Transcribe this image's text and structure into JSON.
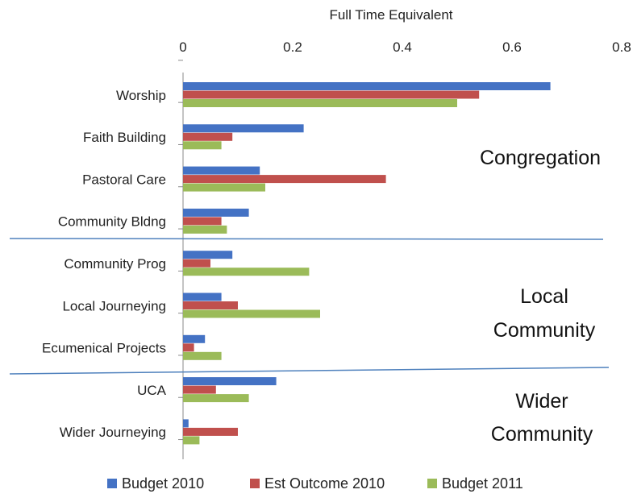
{
  "chart_data": {
    "type": "bar",
    "orientation": "horizontal",
    "xlabel": "Full Time Equivalent",
    "xlim": [
      0,
      0.8
    ],
    "xticks": [
      0,
      0.2,
      0.4,
      0.6,
      0.8
    ],
    "xtick_labels": [
      "0",
      "0.2",
      "0.4",
      "0.6",
      "0.8"
    ],
    "x_axis_position": "top",
    "grid": false,
    "legend_position": "bottom",
    "categories": [
      "Worship",
      "Faith Building",
      "Pastoral Care",
      "Community Bldng",
      "Community Prog",
      "Local Journeying",
      "Ecumenical Projects",
      "UCA",
      "Wider Journeying"
    ],
    "series": [
      {
        "name": "Budget 2010",
        "color": "#4472C4",
        "values": [
          0.67,
          0.22,
          0.14,
          0.12,
          0.09,
          0.07,
          0.04,
          0.17,
          0.01
        ]
      },
      {
        "name": "Est Outcome 2010",
        "color": "#C0504D",
        "values": [
          0.54,
          0.09,
          0.37,
          0.07,
          0.05,
          0.1,
          0.02,
          0.06,
          0.1
        ]
      },
      {
        "name": "Budget 2011",
        "color": "#9BBB59",
        "values": [
          0.5,
          0.07,
          0.15,
          0.08,
          0.23,
          0.25,
          0.07,
          0.12,
          0.03
        ]
      }
    ],
    "groups": [
      {
        "lines": [
          "Congregation"
        ],
        "categories": [
          "Worship",
          "Faith Building",
          "Pastoral Care",
          "Community Bldng"
        ]
      },
      {
        "lines": [
          "Local",
          "Community"
        ],
        "categories": [
          "Community Prog",
          "Local Journeying",
          "Ecumenical Projects"
        ]
      },
      {
        "lines": [
          "Wider",
          "Community"
        ],
        "categories": [
          "UCA",
          "Wider Journeying"
        ]
      }
    ],
    "divider_color": "#4F81BD"
  }
}
